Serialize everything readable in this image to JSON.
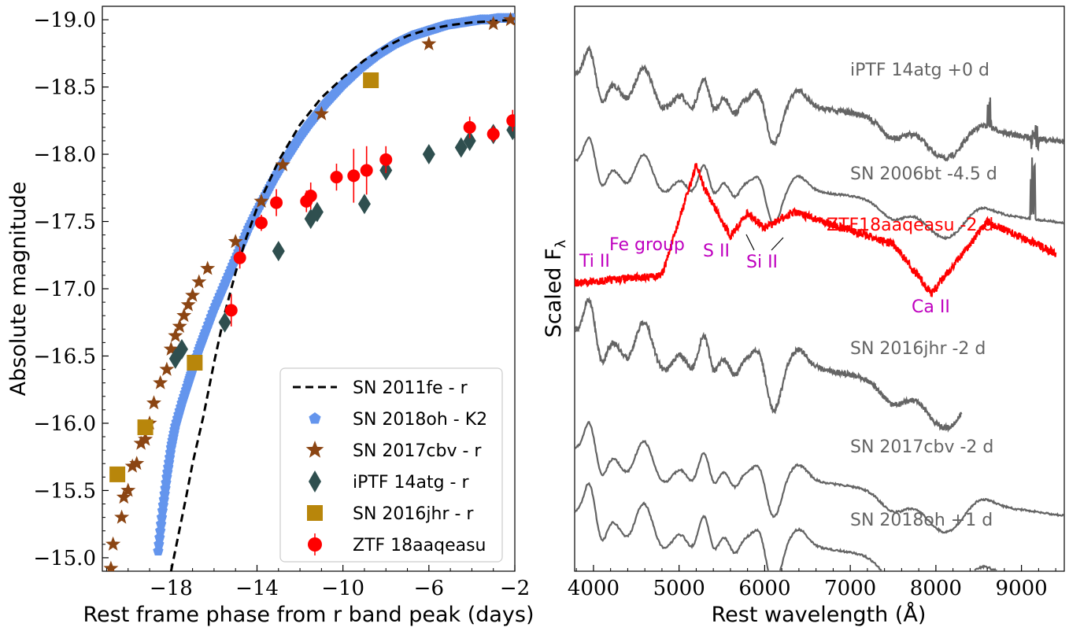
{
  "chart_data": [
    {
      "type": "scatter",
      "xlabel": "Rest frame phase from r band peak (days)",
      "ylabel": "Absolute magnitude",
      "xlim": [
        -21.2,
        -2.0
      ],
      "ylim": [
        -14.9,
        -19.1
      ],
      "y_inverted": true,
      "x_ticks": [
        "−18",
        "−14",
        "−10",
        "−6",
        "−2"
      ],
      "x_tick_values": [
        -18,
        -14,
        -10,
        -6,
        -2
      ],
      "y_ticks": [
        "−15.0",
        "−15.5",
        "−16.0",
        "−16.5",
        "−17.0",
        "−17.5",
        "−18.0",
        "−18.5",
        "−19.0"
      ],
      "y_tick_values": [
        -15.0,
        -15.5,
        -16.0,
        -16.5,
        -17.0,
        -17.5,
        -18.0,
        -18.5,
        -19.0
      ],
      "legend_position": "lower-right",
      "series": [
        {
          "name": "SN 2011fe - r",
          "style": "dashed-line",
          "color": "#000000",
          "x": [
            -18.0,
            -17.3,
            -17.0,
            -16.5,
            -16.0,
            -15.5,
            -15.0,
            -14.5,
            -14.0,
            -13.0,
            -12.0,
            -11.0,
            -10.0,
            -9.0,
            -8.0,
            -7.0,
            -6.0,
            -5.0,
            -4.0,
            -3.0,
            -2.0
          ],
          "y": [
            -14.9,
            -15.45,
            -15.7,
            -16.05,
            -16.45,
            -16.82,
            -17.12,
            -17.38,
            -17.6,
            -17.95,
            -18.22,
            -18.42,
            -18.57,
            -18.7,
            -18.8,
            -18.88,
            -18.93,
            -18.96,
            -18.98,
            -18.99,
            -19.0
          ]
        },
        {
          "name": "SN 2018oh - K2",
          "style": "pentagon",
          "color": "#6495ed",
          "x": [
            -18.6,
            -18.4,
            -18.2,
            -18.0,
            -17.8,
            -17.5,
            -17.2,
            -17.0,
            -16.7,
            -16.4,
            -16.0,
            -15.6,
            -15.2,
            -14.8,
            -14.4,
            -14.0,
            -13.6,
            -13.2,
            -12.8,
            -12.4,
            -12.0,
            -11.6,
            -11.2,
            -10.8,
            -10.4,
            -10.0,
            -9.6,
            -9.2,
            -8.8,
            -8.4,
            -8.0,
            -7.6,
            -7.2,
            -6.8,
            -6.4,
            -6.0,
            -5.6,
            -5.2,
            -4.8,
            -4.4,
            -4.0,
            -3.6,
            -3.2,
            -2.8,
            -2.4,
            -2.0
          ],
          "y": [
            -15.05,
            -15.35,
            -15.6,
            -15.82,
            -15.98,
            -16.15,
            -16.3,
            -16.4,
            -16.55,
            -16.68,
            -16.85,
            -17.0,
            -17.15,
            -17.3,
            -17.45,
            -17.58,
            -17.7,
            -17.82,
            -17.93,
            -18.03,
            -18.13,
            -18.22,
            -18.3,
            -18.38,
            -18.45,
            -18.52,
            -18.58,
            -18.64,
            -18.69,
            -18.74,
            -18.78,
            -18.82,
            -18.85,
            -18.88,
            -18.9,
            -18.92,
            -18.94,
            -18.96,
            -18.97,
            -18.98,
            -18.99,
            -19.0,
            -19.0,
            -19.01,
            -19.01,
            -19.01
          ]
        },
        {
          "name": "SN 2017cbv - r",
          "style": "star",
          "color": "#8b4513",
          "x": [
            -20.8,
            -20.7,
            -20.3,
            -20.2,
            -20.0,
            -19.8,
            -19.6,
            -19.4,
            -19.2,
            -19.0,
            -18.8,
            -18.5,
            -18.2,
            -18.0,
            -17.8,
            -17.6,
            -17.4,
            -17.2,
            -17.0,
            -16.7,
            -16.3,
            -15.0,
            -13.8,
            -12.8,
            -11.0,
            -6.0,
            -3.0,
            -2.2
          ],
          "y": [
            -14.92,
            -15.1,
            -15.3,
            -15.45,
            -15.5,
            -15.68,
            -15.7,
            -15.85,
            -15.88,
            -16.0,
            -16.15,
            -16.3,
            -16.4,
            -16.55,
            -16.65,
            -16.72,
            -16.8,
            -16.88,
            -16.95,
            -17.05,
            -17.15,
            -17.35,
            -17.65,
            -17.92,
            -18.3,
            -18.82,
            -18.97,
            -19.0
          ]
        },
        {
          "name": "iPTF 14atg - r",
          "style": "diamond",
          "color": "#2f4f4f",
          "x": [
            -17.8,
            -17.5,
            -15.5,
            -13.0,
            -11.5,
            -11.2,
            -9.0,
            -8.0,
            -6.0,
            -4.5,
            -4.1,
            -3.0,
            -2.1
          ],
          "y": [
            -16.48,
            -16.55,
            -16.75,
            -17.28,
            -17.52,
            -17.57,
            -17.63,
            -17.88,
            -18.0,
            -18.05,
            -18.1,
            -18.15,
            -18.18
          ]
        },
        {
          "name": "SN 2016jhr - r",
          "style": "square",
          "color": "#b8860b",
          "x": [
            -20.5,
            -19.2,
            -16.9,
            -8.7
          ],
          "y": [
            -15.62,
            -15.97,
            -16.45,
            -18.55
          ]
        },
        {
          "name": "ZTF 18aaqeasu",
          "style": "circle-errorbar",
          "color": "#ff0000",
          "x": [
            -15.2,
            -14.8,
            -13.8,
            -13.1,
            -11.7,
            -11.5,
            -10.3,
            -9.5,
            -8.9,
            -8.0,
            -4.1,
            -3.0,
            -2.1
          ],
          "y": [
            -16.84,
            -17.23,
            -17.49,
            -17.64,
            -17.65,
            -17.69,
            -17.83,
            -17.84,
            -17.88,
            -17.96,
            -18.2,
            -18.15,
            -18.25
          ]
        }
      ]
    },
    {
      "type": "line",
      "xlabel": "Rest wavelength (Å)",
      "ylabel": "Scaled F_λ",
      "xlim": [
        3780,
        9500
      ],
      "x_ticks": [
        "4000",
        "5000",
        "6000",
        "7000",
        "8000",
        "9000"
      ],
      "x_tick_values": [
        4000,
        5000,
        6000,
        7000,
        8000,
        9000
      ],
      "series": [
        {
          "name": "iPTF 14atg +0 d",
          "color": "#646464",
          "x_range": [
            3780,
            9500
          ],
          "offset": 5,
          "noise": "moderate",
          "continuum": "falling"
        },
        {
          "name": "SN 2006bt -4.5 d",
          "color": "#646464",
          "x_range": [
            3780,
            9500
          ],
          "offset": 4,
          "noise": "low",
          "continuum": "falling"
        },
        {
          "name": "ZTF18aaqeasu -2 d",
          "color": "#ff0000",
          "x_range": [
            3780,
            9400
          ],
          "offset": 3,
          "noise": "high",
          "continuum": "peaked"
        },
        {
          "name": "SN 2016jhr -2 d",
          "color": "#646464",
          "x_range": [
            3780,
            8300
          ],
          "offset": 2,
          "noise": "moderate",
          "continuum": "falling"
        },
        {
          "name": "SN 2017cbv -2 d",
          "color": "#646464",
          "x_range": [
            3780,
            9500
          ],
          "offset": 1,
          "noise": "low",
          "continuum": "falling"
        },
        {
          "name": "SN 2018oh +1 d",
          "color": "#646464",
          "x_range": [
            3780,
            9500
          ],
          "offset": 0,
          "noise": "low",
          "continuum": "falling"
        }
      ],
      "annotations": [
        {
          "text": "Ti II",
          "wavelength": 4000,
          "color": "#bf00bf"
        },
        {
          "text": "Fe group",
          "wavelength": 4750,
          "color": "#bf00bf"
        },
        {
          "text": "S II",
          "wavelength": 5380,
          "color": "#bf00bf"
        },
        {
          "text": "Si II",
          "wavelength": 6000,
          "color": "#bf00bf"
        },
        {
          "text": "Ca II",
          "wavelength": 7950,
          "color": "#bf00bf"
        }
      ]
    }
  ],
  "legend_title": ""
}
